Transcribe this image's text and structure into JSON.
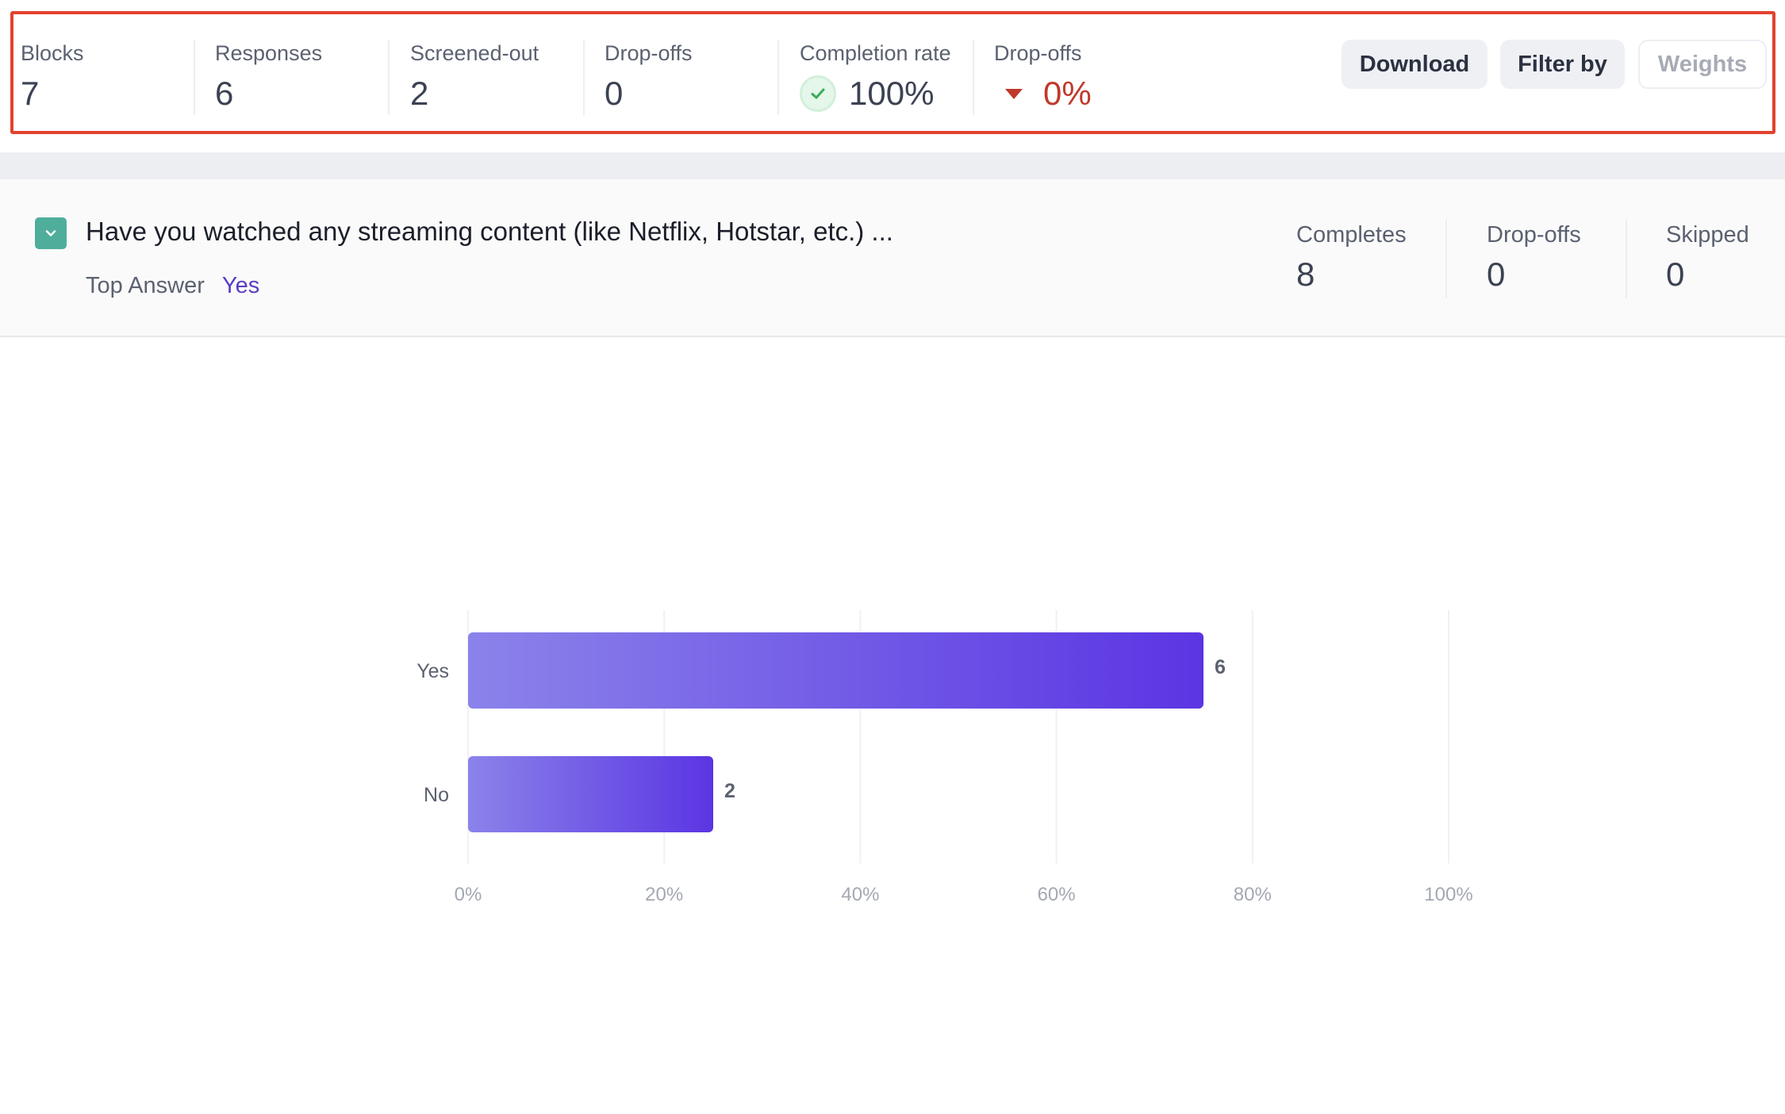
{
  "stats": [
    {
      "label": "Blocks",
      "value": "7"
    },
    {
      "label": "Responses",
      "value": "6"
    },
    {
      "label": "Screened-out",
      "value": "2"
    },
    {
      "label": "Drop-offs",
      "value": "0"
    },
    {
      "label": "Completion rate",
      "value": "100%"
    },
    {
      "label": "Drop-offs",
      "value": "0%"
    }
  ],
  "toolbar": {
    "download_label": "Download",
    "filter_label": "Filter by",
    "weights_label": "Weights"
  },
  "colors": {
    "highlight": "#e2422f",
    "accent": "#5b3cc4",
    "negative": "#c0392b",
    "success": "#3cab5a",
    "check_box": "#4fae9b",
    "bar_start": "#8b83ea",
    "bar_end": "#5b35e3"
  },
  "icons": {
    "completion": "check-circle-icon",
    "dropoff_trend": "down-triangle-icon",
    "question": "chevron-down-icon"
  },
  "question": {
    "title": "Have you watched any streaming content (like Netflix, Hotstar, etc.) ...",
    "top_answer_label": "Top Answer",
    "top_answer_value": "Yes",
    "stats": [
      {
        "label": "Completes",
        "value": "8"
      },
      {
        "label": "Drop-offs",
        "value": "0"
      },
      {
        "label": "Skipped",
        "value": "0"
      }
    ]
  },
  "chart_data": {
    "type": "bar",
    "orientation": "horizontal",
    "categories": [
      "Yes",
      "No"
    ],
    "values": [
      6,
      2
    ],
    "percent": [
      75,
      25
    ],
    "xlim": [
      0,
      100
    ],
    "xticks": [
      "0%",
      "20%",
      "40%",
      "60%",
      "80%",
      "100%"
    ],
    "grid": true,
    "title": "",
    "xlabel": "",
    "ylabel": ""
  }
}
